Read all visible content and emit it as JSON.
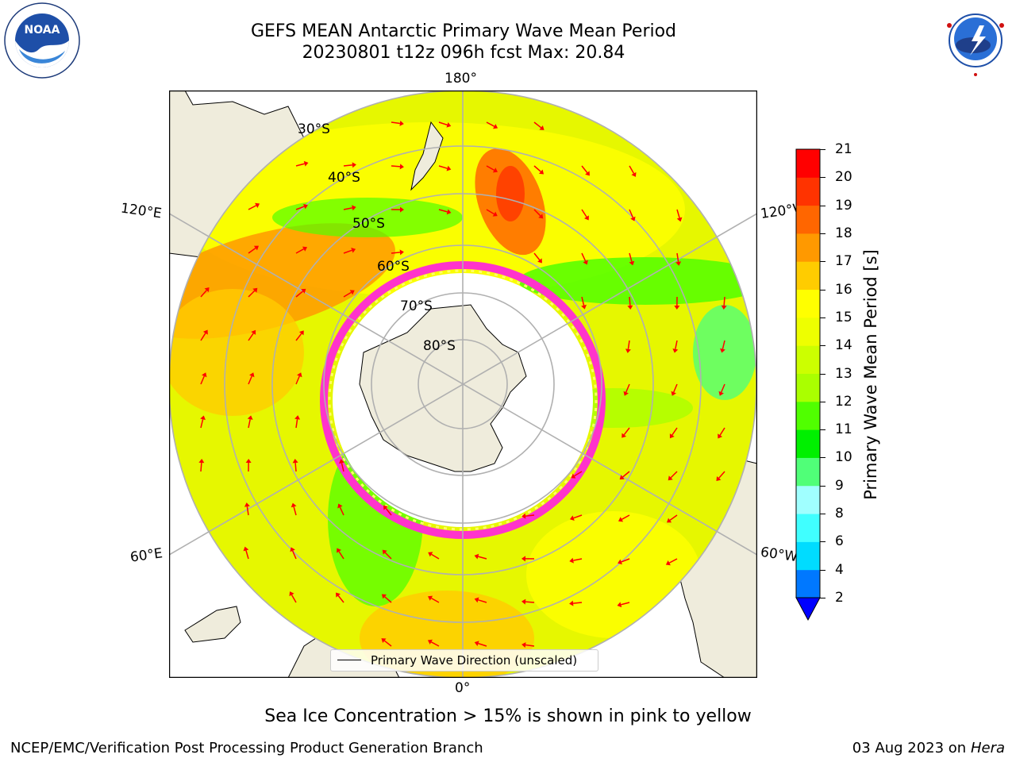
{
  "header": {
    "title_line1": "GEFS MEAN Antarctic Primary Wave Mean Period",
    "title_line2": "20230801 t12z 096h fcst   Max: 20.84"
  },
  "map": {
    "projection": "south-polar-stereographic",
    "longitude_labels": {
      "top": "180°",
      "bottom": "0°",
      "left_upper": "120°E",
      "left_lower": "60°E",
      "right_upper": "120°W",
      "right_lower": "60°W"
    },
    "latitude_labels": [
      "30°S",
      "40°S",
      "50°S",
      "60°S",
      "70°S",
      "80°S"
    ],
    "land_color": "#efecdc",
    "ice_colors": [
      "#ff33cc",
      "#ffff66"
    ],
    "arrow_color": "#ff0000"
  },
  "colorbar": {
    "label": "Primary Wave Mean Period [s]",
    "ticks": [
      "2",
      "4",
      "6",
      "8",
      "9",
      "10",
      "11",
      "12",
      "13",
      "14",
      "15",
      "16",
      "17",
      "18",
      "19",
      "20",
      "21"
    ],
    "colors": [
      "#0078ff",
      "#00dcff",
      "#40ffff",
      "#a0ffff",
      "#50ff78",
      "#00f000",
      "#50ff00",
      "#aaff00",
      "#ccff00",
      "#eeff00",
      "#ffff00",
      "#ffcc00",
      "#ff9900",
      "#ff6600",
      "#ff3300",
      "#ff0000"
    ],
    "under_color": "#0000ff"
  },
  "legend": {
    "label": "Primary Wave Direction (unscaled)"
  },
  "subtitle": "Sea Ice Concentration > 15% is shown in pink to yellow",
  "footer": {
    "left": "NCEP/EMC/Verification Post Processing Product Generation Branch",
    "date": "03 Aug 2023 on",
    "machine": "Hera"
  },
  "logos": {
    "left": {
      "text": "NOAA",
      "ring_text_top": "NATIONAL OCEANIC AND ATMOSPHERIC ADMINISTRATION",
      "ring_text_bottom": "U.S. DEPARTMENT OF COMMERCE"
    },
    "right": {
      "ring_text": "NATIONAL WEATHER SERVICE"
    }
  }
}
